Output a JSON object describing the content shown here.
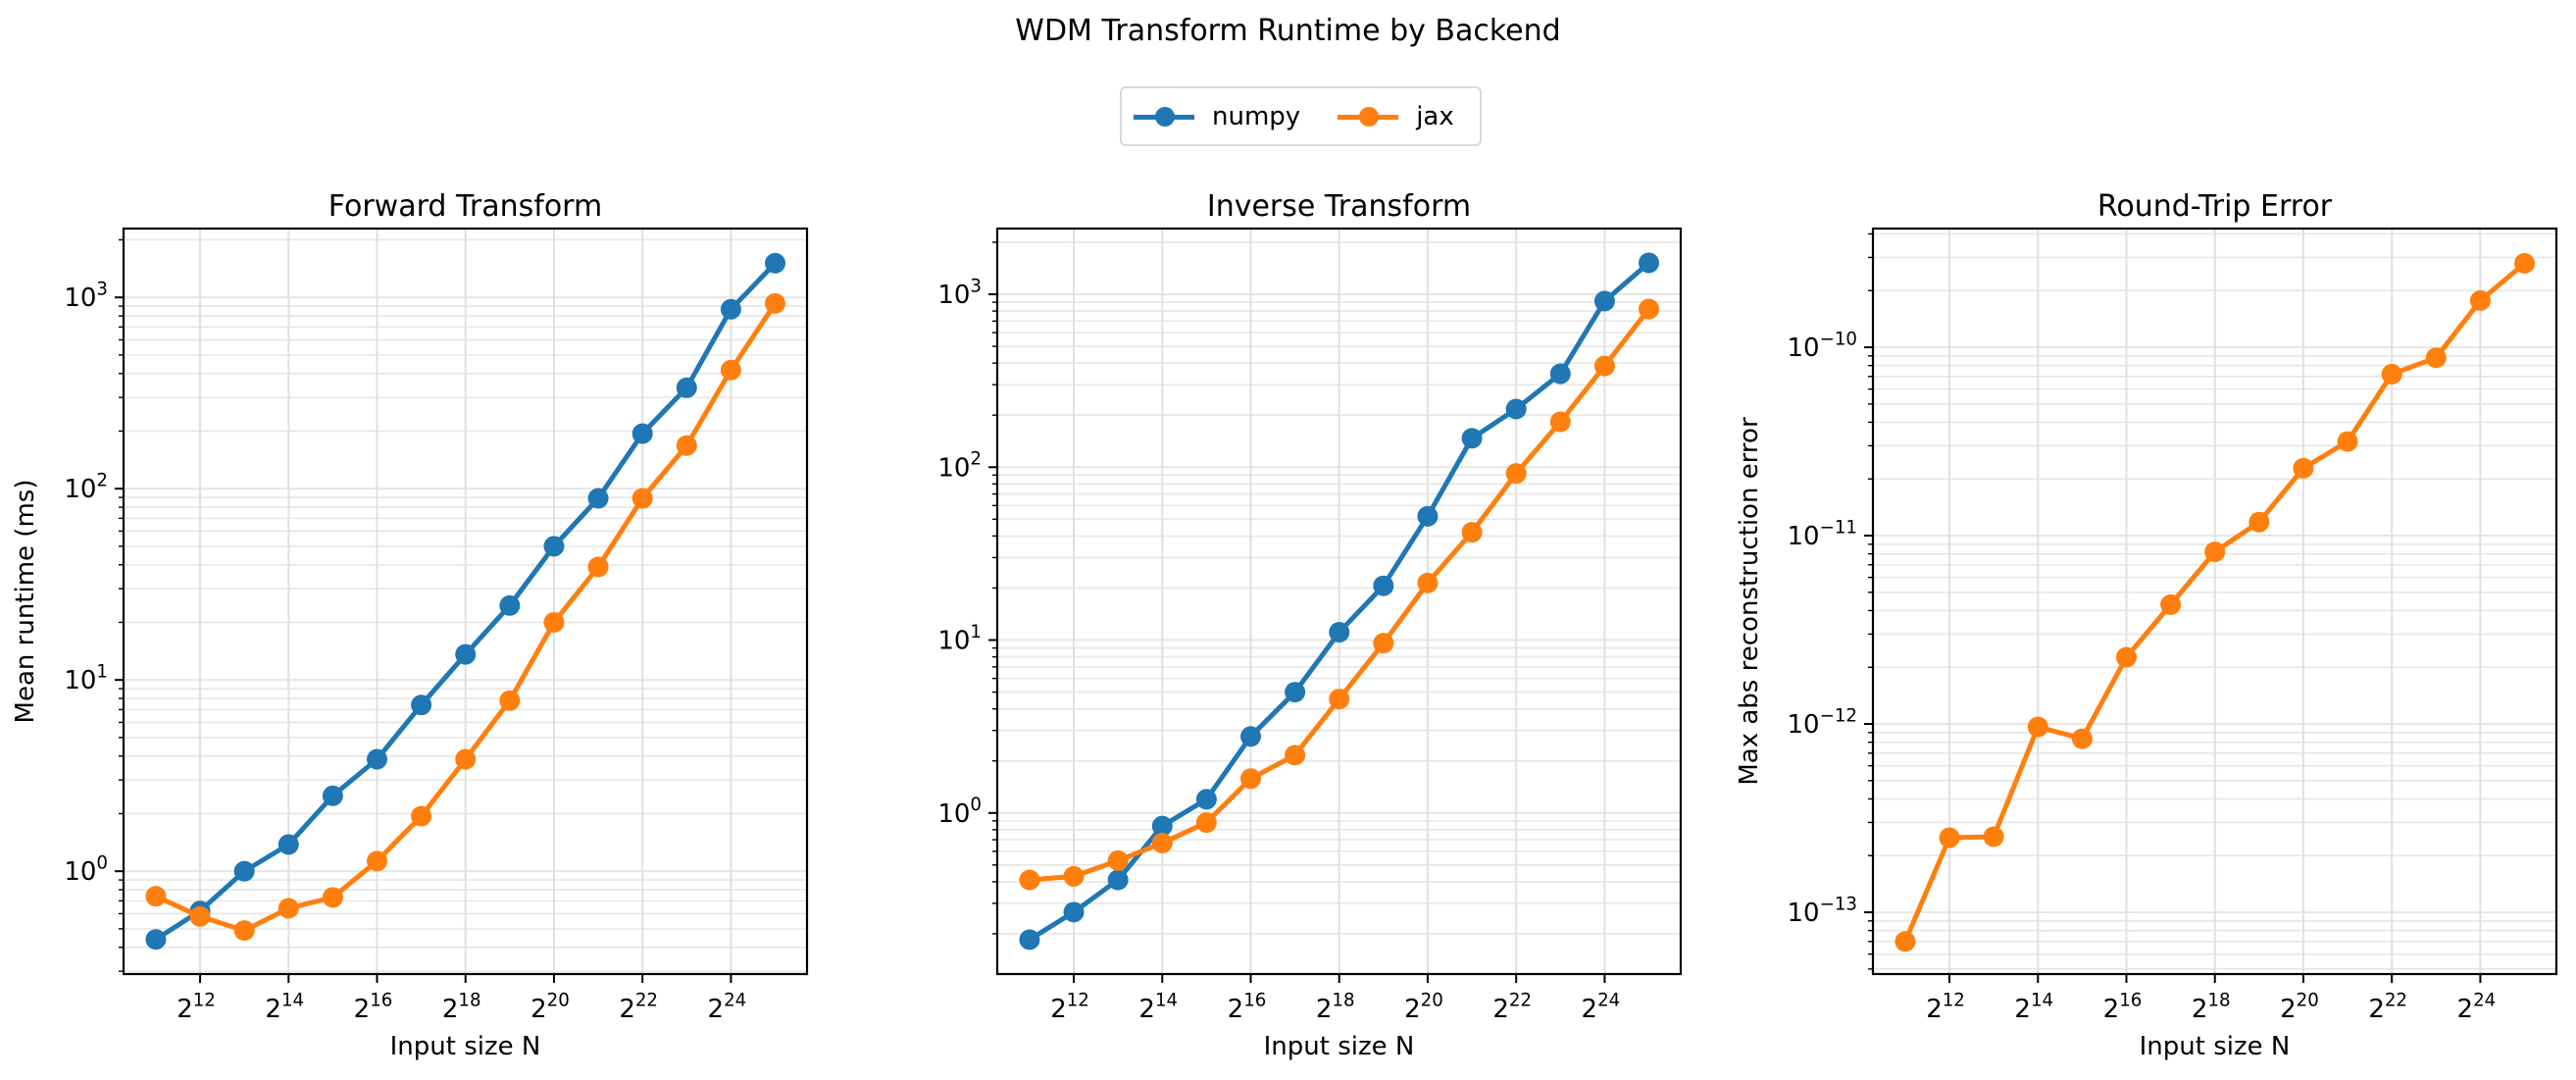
{
  "figure": {
    "title": "WDM Transform Runtime by Backend",
    "legend": [
      {
        "label": "numpy",
        "color": "#1f77b4"
      },
      {
        "label": "jax",
        "color": "#ff7f0e"
      }
    ]
  },
  "chart_data": [
    {
      "type": "line",
      "title": "Forward Transform",
      "xlabel": "Input size N",
      "ylabel": "Mean runtime (ms)",
      "xscale": "log2",
      "yscale": "log10",
      "x_exponents": [
        11,
        12,
        13,
        14,
        15,
        16,
        17,
        18,
        19,
        20,
        21,
        22,
        23,
        24,
        25
      ],
      "x": [
        2048,
        4096,
        8192,
        16384,
        32768,
        65536,
        131072,
        262144,
        524288,
        1048576,
        2097152,
        4194304,
        8388608,
        16777216,
        33554432
      ],
      "xticks": [
        "2^12",
        "2^14",
        "2^16",
        "2^18",
        "2^20",
        "2^22",
        "2^24"
      ],
      "yticks": [
        "10^0",
        "10^1",
        "10^2",
        "10^3"
      ],
      "xlim_exp": [
        10.27,
        25.72
      ],
      "ylim": [
        0.29,
        2290
      ],
      "grid": true,
      "legend_position": "upper center (figure)",
      "series": [
        {
          "name": "numpy",
          "color": "#1f77b4",
          "values": [
            0.44,
            0.62,
            1.0,
            1.38,
            2.48,
            3.85,
            7.4,
            13.6,
            24.5,
            50,
            89,
            194,
            337,
            867,
            1510
          ]
        },
        {
          "name": "jax",
          "color": "#ff7f0e",
          "values": [
            0.74,
            0.58,
            0.49,
            0.64,
            0.73,
            1.13,
            1.94,
            3.85,
            7.8,
            20,
            39,
            89,
            168,
            417,
            930
          ]
        }
      ]
    },
    {
      "type": "line",
      "title": "Inverse Transform",
      "xlabel": "Input size N",
      "ylabel": "",
      "xscale": "log2",
      "yscale": "log10",
      "x_exponents": [
        11,
        12,
        13,
        14,
        15,
        16,
        17,
        18,
        19,
        20,
        21,
        22,
        23,
        24,
        25
      ],
      "x": [
        2048,
        4096,
        8192,
        16384,
        32768,
        65536,
        131072,
        262144,
        524288,
        1048576,
        2097152,
        4194304,
        8388608,
        16777216,
        33554432
      ],
      "xticks": [
        "2^12",
        "2^14",
        "2^16",
        "2^18",
        "2^20",
        "2^22",
        "2^24"
      ],
      "yticks": [
        "10^0",
        "10^1",
        "10^2",
        "10^3"
      ],
      "xlim_exp": [
        10.27,
        25.72
      ],
      "ylim": [
        0.117,
        2400
      ],
      "grid": true,
      "series": [
        {
          "name": "numpy",
          "color": "#1f77b4",
          "values": [
            0.185,
            0.267,
            0.41,
            0.84,
            1.2,
            2.77,
            5.0,
            11.1,
            20.6,
            52,
            147,
            217,
            347,
            914,
            1520
          ]
        },
        {
          "name": "jax",
          "color": "#ff7f0e",
          "values": [
            0.41,
            0.43,
            0.53,
            0.67,
            0.88,
            1.58,
            2.16,
            4.56,
            9.6,
            21.4,
            42,
            92,
            183,
            385,
            822
          ]
        }
      ]
    },
    {
      "type": "line",
      "title": "Round-Trip Error",
      "xlabel": "Input size N",
      "ylabel": "Max abs reconstruction error",
      "xscale": "log2",
      "yscale": "log10",
      "x_exponents": [
        11,
        12,
        13,
        14,
        15,
        16,
        17,
        18,
        19,
        20,
        21,
        22,
        23,
        24,
        25
      ],
      "x": [
        2048,
        4096,
        8192,
        16384,
        32768,
        65536,
        131072,
        262144,
        524288,
        1048576,
        2097152,
        4194304,
        8388608,
        16777216,
        33554432
      ],
      "xticks": [
        "2^12",
        "2^14",
        "2^16",
        "2^18",
        "2^20",
        "2^22",
        "2^24"
      ],
      "yticks": [
        "10^-13",
        "10^-12",
        "10^-11",
        "10^-10"
      ],
      "xlim_exp": [
        10.27,
        25.72
      ],
      "ylim": [
        4.7e-14,
        4.27e-10
      ],
      "grid": true,
      "series": [
        {
          "name": "jax",
          "color": "#ff7f0e",
          "values": [
            7e-14,
            2.49e-13,
            2.52e-13,
            9.65e-13,
            8.35e-13,
            2.26e-12,
            4.3e-12,
            8.2e-12,
            1.18e-11,
            2.28e-11,
            3.16e-11,
            7.2e-11,
            8.8e-11,
            1.77e-10,
            2.79e-10
          ]
        }
      ]
    }
  ]
}
